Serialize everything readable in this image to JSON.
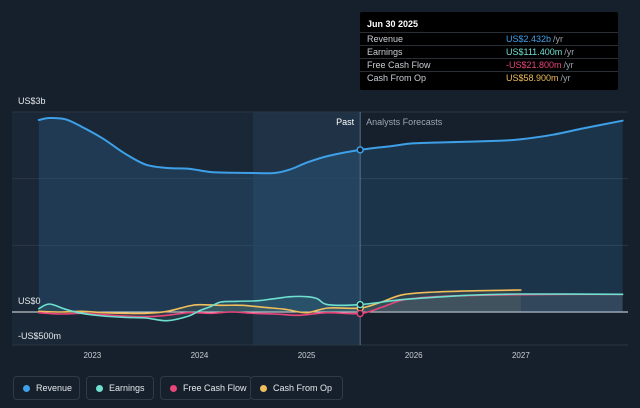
{
  "tooltip": {
    "date": "Jun 30 2025",
    "rows": [
      {
        "label": "Revenue",
        "value": "US$2.432b",
        "unit": "/yr",
        "color": "#3ea0e8"
      },
      {
        "label": "Earnings",
        "value": "US$111.400m",
        "unit": "/yr",
        "color": "#6fe0d0"
      },
      {
        "label": "Free Cash Flow",
        "value": "-US$21.800m",
        "unit": "/yr",
        "color": "#e8457a"
      },
      {
        "label": "Cash From Op",
        "value": "US$58.900m",
        "unit": "/yr",
        "color": "#f0be5c"
      }
    ]
  },
  "legend": [
    {
      "label": "Revenue",
      "color": "#3ea0e8"
    },
    {
      "label": "Earnings",
      "color": "#6fe0d0"
    },
    {
      "label": "Free Cash Flow",
      "color": "#e8457a"
    },
    {
      "label": "Cash From Op",
      "color": "#f0be5c"
    }
  ],
  "chart_data": {
    "type": "line",
    "y_unit": "US$ (millions)",
    "ylim": [
      -500,
      3000
    ],
    "y_tick_labels": [
      {
        "value": 3000,
        "label": "US$3b"
      },
      {
        "value": 0,
        "label": "US$0"
      },
      {
        "value": -500,
        "label": "-US$500m"
      }
    ],
    "x_tick_labels": [
      "2023",
      "2024",
      "2025",
      "2026",
      "2027"
    ],
    "xlim": [
      2022.25,
      2028.0
    ],
    "divider_label": "Past",
    "forecast_label": "Analysts Forecasts",
    "divider_x": 2025.5,
    "highlight_start_x": 2024.5,
    "grid": true,
    "legend_position": "bottom",
    "series": [
      {
        "name": "Revenue",
        "color": "#3ea0e8",
        "x": [
          2022.5,
          2022.6,
          2022.75,
          2022.9,
          2023.1,
          2023.3,
          2023.5,
          2023.7,
          2023.9,
          2024.1,
          2024.3,
          2024.5,
          2024.7,
          2024.85,
          2025.0,
          2025.2,
          2025.5,
          2025.8,
          2026.0,
          2026.4,
          2026.8,
          2027.0,
          2027.3,
          2027.6,
          2027.95
        ],
        "y": [
          2880,
          2910,
          2890,
          2780,
          2600,
          2380,
          2210,
          2160,
          2150,
          2100,
          2090,
          2085,
          2085,
          2140,
          2240,
          2340,
          2432,
          2490,
          2530,
          2550,
          2570,
          2590,
          2660,
          2760,
          2870
        ]
      },
      {
        "name": "Earnings",
        "color": "#6fe0d0",
        "x": [
          2022.5,
          2022.6,
          2022.75,
          2022.9,
          2023.1,
          2023.3,
          2023.5,
          2023.7,
          2023.9,
          2024.0,
          2024.1,
          2024.2,
          2024.35,
          2024.55,
          2024.7,
          2024.85,
          2025.0,
          2025.1,
          2025.2,
          2025.5,
          2025.8,
          2026.0,
          2026.5,
          2027.0,
          2027.95
        ],
        "y": [
          50,
          120,
          40,
          -20,
          -60,
          -80,
          -90,
          -130,
          -60,
          20,
          80,
          150,
          160,
          170,
          200,
          230,
          230,
          200,
          110,
          111,
          170,
          200,
          250,
          270,
          265
        ]
      },
      {
        "name": "Free Cash Flow",
        "color": "#e8457a",
        "x": [
          2022.5,
          2022.7,
          2022.9,
          2023.1,
          2023.3,
          2023.5,
          2023.7,
          2023.9,
          2024.1,
          2024.3,
          2024.5,
          2024.7,
          2024.9,
          2025.0,
          2025.2,
          2025.5,
          2025.7,
          2025.9,
          2026.2,
          2026.6,
          2027.0,
          2027.5,
          2027.95
        ],
        "y": [
          -10,
          -30,
          -20,
          -40,
          -60,
          -70,
          -50,
          -10,
          -20,
          0,
          -20,
          -30,
          -50,
          -40,
          -10,
          -21.8,
          70,
          180,
          230,
          250,
          260,
          265,
          265
        ]
      },
      {
        "name": "Cash From Op",
        "color": "#f0be5c",
        "x": [
          2022.5,
          2022.7,
          2022.9,
          2023.1,
          2023.3,
          2023.5,
          2023.7,
          2023.9,
          2024.0,
          2024.2,
          2024.4,
          2024.6,
          2024.8,
          2025.0,
          2025.2,
          2025.5,
          2025.7,
          2025.9,
          2026.2,
          2026.6,
          2027.0
        ],
        "y": [
          10,
          0,
          10,
          -10,
          -20,
          -20,
          10,
          90,
          110,
          100,
          100,
          70,
          40,
          -10,
          60,
          58.9,
          150,
          260,
          300,
          320,
          330
        ]
      }
    ]
  }
}
